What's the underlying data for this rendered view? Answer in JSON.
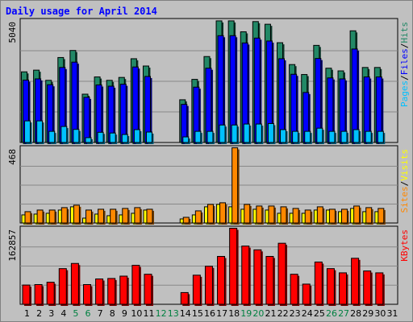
{
  "title": "Daily usage for April 2014",
  "colors": {
    "hits": "#228866",
    "files": "#0000ff",
    "pages": "#00c0ff",
    "visits": "#ffff00",
    "sites": "#ff8800",
    "kbytes": "#ff0000",
    "weekend_tick": "#008040",
    "weekday_tick": "#000000"
  },
  "chart_data": [
    {
      "type": "bar",
      "title": "Daily usage for April 2014",
      "categories": [
        "1",
        "2",
        "3",
        "4",
        "5",
        "6",
        "7",
        "8",
        "9",
        "10",
        "11",
        "12",
        "13",
        "14",
        "15",
        "16",
        "17",
        "18",
        "19",
        "20",
        "21",
        "22",
        "23",
        "24",
        "25",
        "26",
        "27",
        "28",
        "29",
        "30",
        "31"
      ],
      "weekend_days": [
        "5",
        "6",
        "12",
        "13",
        "19",
        "20",
        "26",
        "27"
      ],
      "y_tick_label": "5040",
      "ylim": [
        0,
        5040
      ],
      "right_label_parts": [
        "Pages",
        "Files",
        "Hits"
      ],
      "series": [
        {
          "name": "Hits",
          "values": [
            2910,
            2980,
            2560,
            3500,
            3790,
            1990,
            2700,
            2560,
            2680,
            3450,
            3150,
            0,
            0,
            1760,
            2600,
            3540,
            5010,
            5010,
            4560,
            4980,
            4870,
            4110,
            3210,
            2800,
            4000,
            3060,
            2950,
            4600,
            3090,
            3090,
            0
          ]
        },
        {
          "name": "Files",
          "values": [
            2570,
            2620,
            2380,
            3090,
            3310,
            1860,
            2370,
            2320,
            2400,
            3110,
            2720,
            0,
            0,
            1570,
            2280,
            3060,
            4400,
            4400,
            4100,
            4300,
            4180,
            3450,
            2810,
            2060,
            3460,
            2660,
            2620,
            3850,
            2700,
            2700,
            0
          ]
        },
        {
          "name": "Pages",
          "values": [
            890,
            890,
            460,
            660,
            540,
            200,
            420,
            390,
            330,
            530,
            430,
            0,
            0,
            230,
            460,
            460,
            720,
            720,
            760,
            760,
            780,
            530,
            460,
            460,
            590,
            460,
            460,
            530,
            460,
            460,
            0
          ]
        }
      ]
    },
    {
      "type": "bar",
      "y_tick_label": "468",
      "ylim": [
        0,
        468
      ],
      "right_label_parts": [
        "Sites",
        "Visits"
      ],
      "series": [
        {
          "name": "Visits",
          "values": [
            50,
            55,
            60,
            80,
            100,
            30,
            55,
            45,
            50,
            60,
            80,
            0,
            0,
            25,
            50,
            100,
            115,
            100,
            85,
            85,
            80,
            60,
            60,
            60,
            80,
            80,
            70,
            90,
            70,
            70,
            0
          ]
        },
        {
          "name": "Sites",
          "values": [
            70,
            80,
            80,
            95,
            110,
            80,
            85,
            85,
            90,
            95,
            85,
            0,
            0,
            35,
            75,
            115,
            125,
            465,
            115,
            105,
            105,
            100,
            90,
            80,
            100,
            85,
            85,
            105,
            95,
            90,
            0
          ]
        }
      ]
    },
    {
      "type": "bar",
      "y_tick_label": "162857",
      "ylim": [
        0,
        162857
      ],
      "right_label_parts": [
        "KBytes"
      ],
      "series": [
        {
          "name": "KBytes",
          "values": [
            41000,
            42000,
            47000,
            76000,
            87000,
            42000,
            54000,
            55000,
            60000,
            83000,
            64000,
            0,
            0,
            25000,
            62000,
            81000,
            102000,
            162000,
            124000,
            116000,
            102000,
            130000,
            64000,
            43000,
            90000,
            76000,
            67000,
            98000,
            71000,
            67000,
            0
          ]
        }
      ]
    }
  ]
}
